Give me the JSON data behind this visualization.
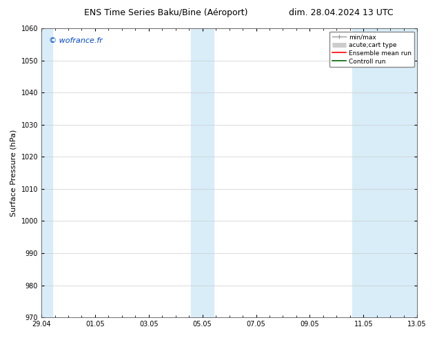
{
  "title_left": "ENS Time Series Baku/Bine (Aéroport)",
  "title_right": "dim. 28.04.2024 13 UTC",
  "ylabel": "Surface Pressure (hPa)",
  "watermark": "© wofrance.fr",
  "watermark_color": "#0044cc",
  "ylim": [
    970,
    1060
  ],
  "yticks": [
    970,
    980,
    990,
    1000,
    1010,
    1020,
    1030,
    1040,
    1050,
    1060
  ],
  "xtick_labels": [
    "29.04",
    "01.05",
    "03.05",
    "05.05",
    "07.05",
    "09.05",
    "11.05",
    "13.05"
  ],
  "xtick_positions": [
    0,
    2,
    4,
    6,
    8,
    10,
    12,
    14
  ],
  "xlim_start": 0,
  "xlim_end": 14,
  "shaded_bands": [
    {
      "x_start": 0.0,
      "x_end": 0.42
    },
    {
      "x_start": 5.58,
      "x_end": 6.42
    },
    {
      "x_start": 11.58,
      "x_end": 14.0
    }
  ],
  "band_color": "#d8edf8",
  "background_color": "#ffffff",
  "grid_color": "#cccccc",
  "title_fontsize": 9,
  "tick_fontsize": 7,
  "ylabel_fontsize": 8,
  "watermark_fontsize": 8
}
